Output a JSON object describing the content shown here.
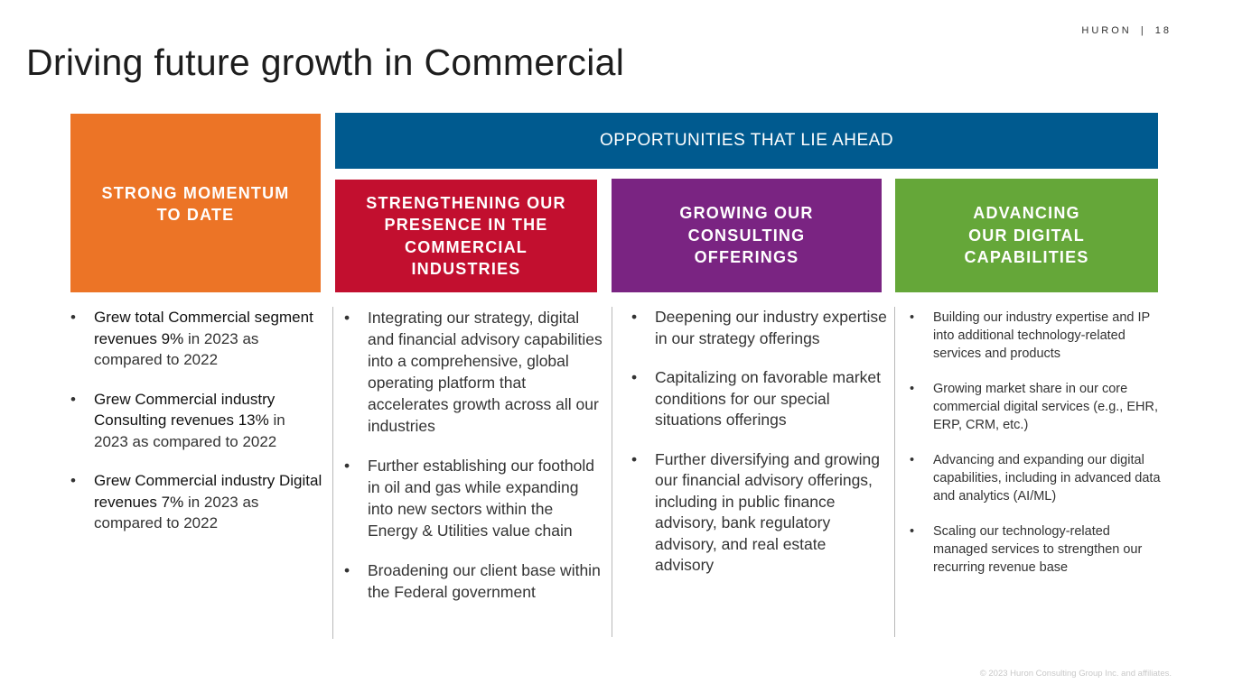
{
  "brand": {
    "name": "HURON",
    "separator": "|",
    "page": "18"
  },
  "title": "Driving future growth in Commercial",
  "colors": {
    "orange": "#ec7426",
    "blue": "#005a8f",
    "red": "#c20f2f",
    "purple": "#7a2482",
    "green": "#65a739"
  },
  "opportunities_header": "OPPORTUNITIES THAT LIE AHEAD",
  "columns": [
    {
      "header_lines": [
        "STRONG MOMENTUM",
        "TO DATE"
      ],
      "bullets": [
        {
          "bold": "Grew total Commercial segment revenues 9%",
          "text": " in 2023 as compared to 2022"
        },
        {
          "bold": "Grew Commercial industry Consulting revenues 13%",
          "text": " in 2023 as compared to 2022"
        },
        {
          "bold": "Grew Commercial industry Digital revenues 7%",
          "text": " in 2023 as compared to 2022"
        }
      ]
    },
    {
      "header_lines": [
        "STRENGTHENING OUR",
        "PRESENCE IN THE",
        "COMMERCIAL",
        "INDUSTRIES"
      ],
      "bullets": [
        "Integrating our strategy, digital and financial advisory capabilities into a comprehensive, global operating platform that accelerates growth across all our industries",
        "Further establishing our foothold in oil and gas while expanding into new sectors within the Energy & Utilities value chain",
        "Broadening our client base within the Federal government"
      ]
    },
    {
      "header_lines": [
        "GROWING OUR",
        "CONSULTING",
        "OFFERINGS"
      ],
      "bullets": [
        "Deepening our industry expertise in our strategy offerings",
        "Capitalizing on favorable market conditions for our special situations offerings",
        "Further diversifying and growing our financial advisory offerings, including in public finance advisory, bank regulatory advisory, and real estate advisory"
      ]
    },
    {
      "header_lines": [
        "ADVANCING",
        "OUR DIGITAL",
        "CAPABILITIES"
      ],
      "bullets": [
        "Building our industry expertise and IP into additional technology-related services and products",
        "Growing market share in our core commercial digital services (e.g., EHR, ERP, CRM, etc.)",
        "Advancing and expanding our digital capabilities, including in advanced data and analytics (AI/ML)",
        "Scaling our technology-related managed services to strengthen our recurring revenue base"
      ]
    }
  ],
  "footer": "© 2023 Huron Consulting Group Inc. and affiliates."
}
